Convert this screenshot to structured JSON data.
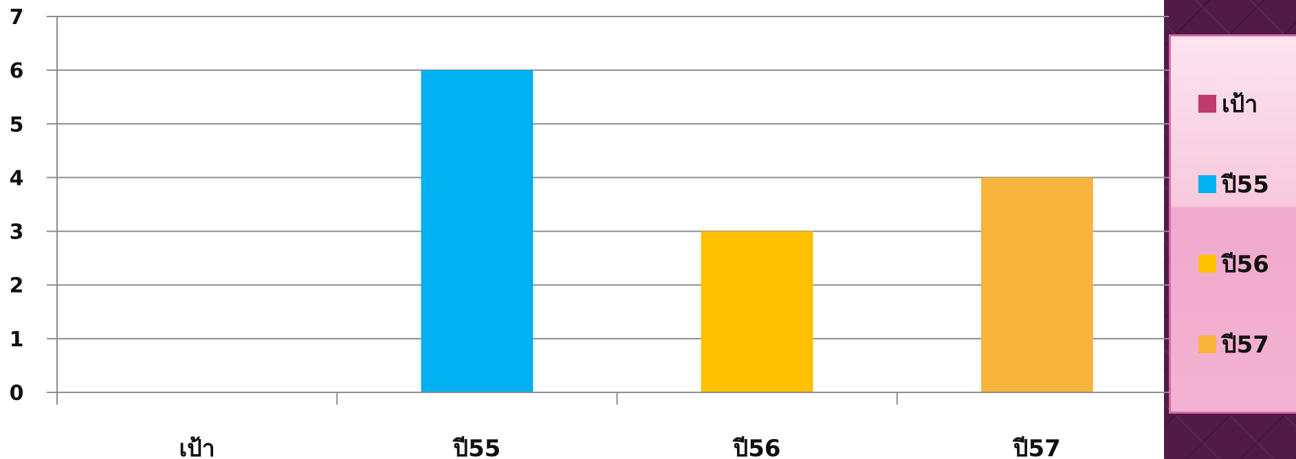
{
  "chart_data": {
    "type": "bar",
    "categories": [
      "เป้า",
      "ปี55",
      "ปี56",
      "ปี57"
    ],
    "values": [
      0,
      6,
      3,
      4
    ],
    "colors": [
      "#be3b6a",
      "#00b0f0",
      "#ffc000",
      "#f7b43c"
    ],
    "yticks": [
      "0",
      "1",
      "2",
      "3",
      "4",
      "5",
      "6",
      "7"
    ],
    "ylim": [
      0,
      7
    ],
    "grid": true,
    "legend_position": "right",
    "legend": [
      {
        "label": "เป้า",
        "color": "#be3b6a"
      },
      {
        "label": "ปี55",
        "color": "#00b0f0"
      },
      {
        "label": "ปี56",
        "color": "#ffc000"
      },
      {
        "label": "ปี57",
        "color": "#f7b43c"
      }
    ]
  }
}
